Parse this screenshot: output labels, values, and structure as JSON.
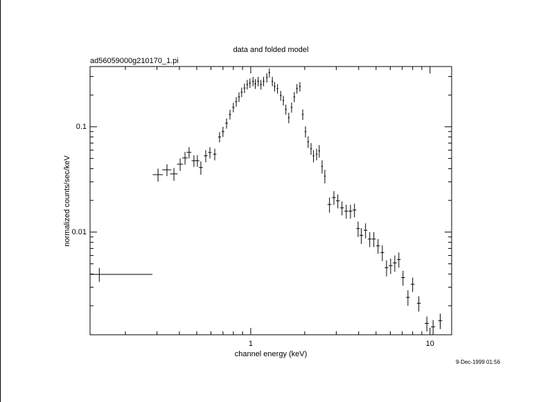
{
  "chart_data": {
    "type": "scatter",
    "title": "data and folded model",
    "subtitle": "ad56059000g210170_1.pi",
    "x_label": "channel energy (keV)",
    "y_label": "normalized counts/sec/keV",
    "timestamp": "9-Dec-1999 01:56",
    "log_x": true,
    "log_y": true,
    "color": "#000000",
    "xlim": [
      0.127,
      13.2
    ],
    "ylim": [
      0.00106,
      0.373
    ],
    "xticks": [
      1,
      10
    ],
    "xminorticks": [
      0.2,
      0.3,
      0.4,
      0.5,
      0.6,
      0.7,
      0.8,
      0.9,
      2,
      3,
      4,
      5,
      6,
      7,
      8,
      9
    ],
    "yticks": [
      0.01,
      0.1
    ],
    "yminorticks": [
      0.002,
      0.003,
      0.004,
      0.005,
      0.006,
      0.007,
      0.008,
      0.009,
      0.02,
      0.03,
      0.04,
      0.05,
      0.06,
      0.07,
      0.08,
      0.09,
      0.2,
      0.3
    ],
    "x": [
      0.143,
      0.304,
      0.341,
      0.373,
      0.404,
      0.43,
      0.453,
      0.482,
      0.504,
      0.527,
      0.561,
      0.592,
      0.63,
      0.67,
      0.7,
      0.733,
      0.766,
      0.8,
      0.83,
      0.86,
      0.89,
      0.923,
      0.956,
      0.99,
      1.03,
      1.06,
      1.1,
      1.14,
      1.18,
      1.23,
      1.27,
      1.32,
      1.36,
      1.41,
      1.47,
      1.52,
      1.57,
      1.63,
      1.69,
      1.75,
      1.81,
      1.88,
      1.95,
      2.02,
      2.09,
      2.17,
      2.24,
      2.33,
      2.41,
      2.5,
      2.59,
      2.75,
      2.91,
      3.06,
      3.23,
      3.41,
      3.6,
      3.79,
      3.97,
      4.14,
      4.37,
      4.61,
      4.86,
      5.13,
      5.42,
      5.72,
      6.03,
      6.36,
      6.7,
      7.07,
      7.53,
      8.0,
      8.66,
      9.6,
      10.4,
      11.4
    ],
    "xerr": [
      0.14,
      0.02,
      0.02,
      0.018,
      0.016,
      0.015,
      0.014,
      0.014,
      0.013,
      0.013,
      0.013,
      0.013,
      0.013,
      0.012,
      0.012,
      0.012,
      0.011,
      0.011,
      0.011,
      0.011,
      0.011,
      0.011,
      0.011,
      0.012,
      0.012,
      0.012,
      0.012,
      0.013,
      0.013,
      0.013,
      0.014,
      0.014,
      0.015,
      0.015,
      0.016,
      0.016,
      0.017,
      0.017,
      0.018,
      0.019,
      0.019,
      0.02,
      0.021,
      0.022,
      0.022,
      0.023,
      0.024,
      0.025,
      0.026,
      0.027,
      0.028,
      0.07,
      0.07,
      0.075,
      0.08,
      0.08,
      0.085,
      0.09,
      0.09,
      0.1,
      0.1,
      0.11,
      0.12,
      0.12,
      0.13,
      0.14,
      0.15,
      0.16,
      0.16,
      0.17,
      0.18,
      0.2,
      0.21,
      0.25,
      0.28,
      0.3
    ],
    "values": [
      0.00397,
      0.0351,
      0.039,
      0.0357,
      0.0441,
      0.0506,
      0.0571,
      0.0476,
      0.0476,
      0.041,
      0.053,
      0.057,
      0.055,
      0.08,
      0.09,
      0.108,
      0.131,
      0.153,
      0.173,
      0.192,
      0.213,
      0.233,
      0.252,
      0.26,
      0.27,
      0.256,
      0.27,
      0.252,
      0.27,
      0.293,
      0.326,
      0.27,
      0.241,
      0.23,
      0.198,
      0.178,
      0.146,
      0.122,
      0.153,
      0.192,
      0.23,
      0.241,
      0.131,
      0.09,
      0.072,
      0.062,
      0.053,
      0.055,
      0.059,
      0.042,
      0.034,
      0.0183,
      0.0213,
      0.0198,
      0.017,
      0.0158,
      0.0158,
      0.0162,
      0.0108,
      0.0093,
      0.0104,
      0.0086,
      0.0086,
      0.0074,
      0.0064,
      0.0046,
      0.0048,
      0.0051,
      0.0055,
      0.0037,
      0.0024,
      0.0032,
      0.00211,
      0.00136,
      0.00126,
      0.00144
    ],
    "yerr": [
      0.0006,
      0.005,
      0.005,
      0.005,
      0.006,
      0.007,
      0.007,
      0.006,
      0.006,
      0.006,
      0.007,
      0.007,
      0.007,
      0.009,
      0.01,
      0.012,
      0.014,
      0.016,
      0.018,
      0.02,
      0.022,
      0.024,
      0.026,
      0.027,
      0.028,
      0.027,
      0.028,
      0.026,
      0.028,
      0.03,
      0.033,
      0.028,
      0.025,
      0.024,
      0.021,
      0.019,
      0.016,
      0.014,
      0.017,
      0.021,
      0.024,
      0.025,
      0.015,
      0.011,
      0.009,
      0.008,
      0.007,
      0.007,
      0.008,
      0.006,
      0.005,
      0.003,
      0.0032,
      0.003,
      0.0026,
      0.0024,
      0.0024,
      0.0024,
      0.0018,
      0.0016,
      0.0017,
      0.0014,
      0.0014,
      0.0012,
      0.0011,
      0.0008,
      0.0008,
      0.0009,
      0.0009,
      0.0006,
      0.0004,
      0.0005,
      0.00035,
      0.00022,
      0.0002,
      0.00024
    ]
  }
}
